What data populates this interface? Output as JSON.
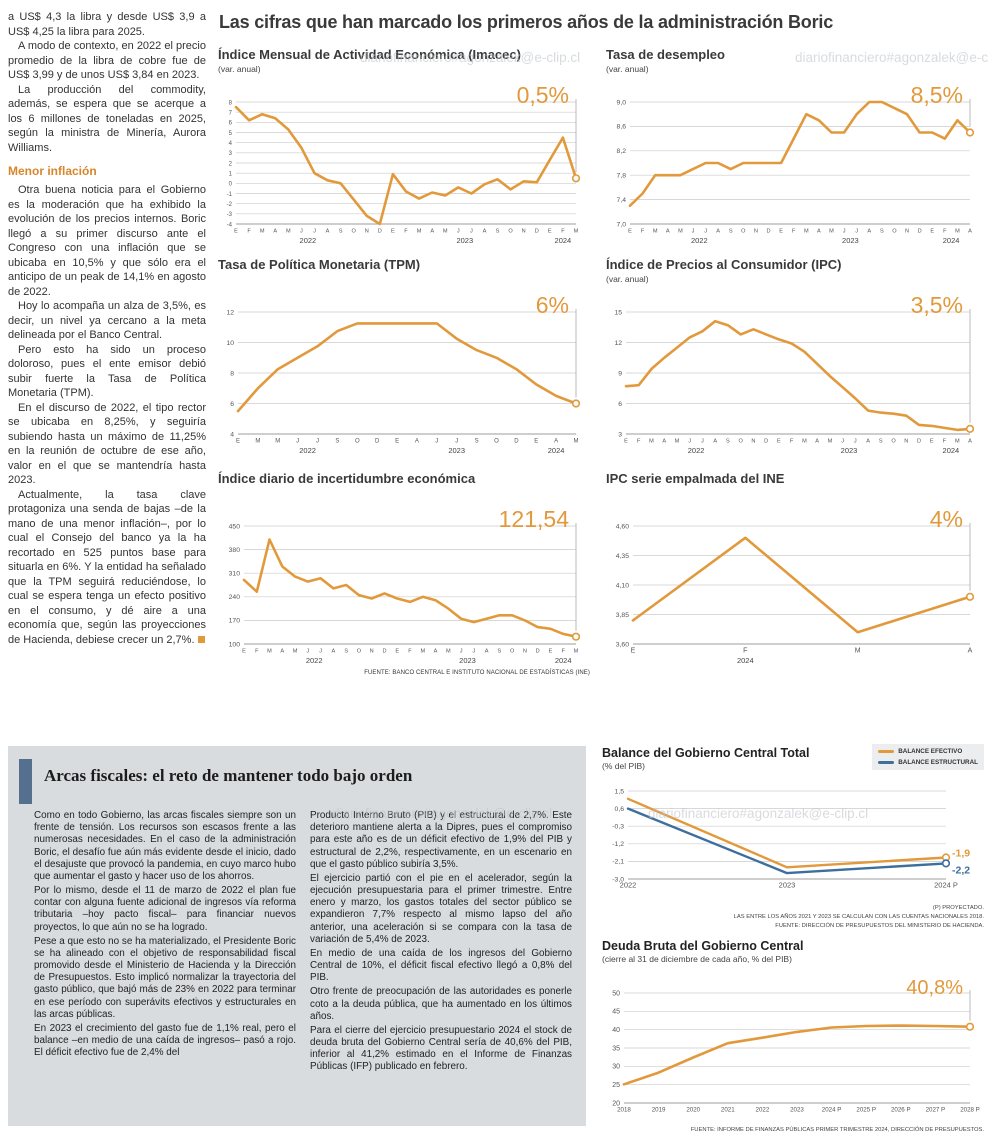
{
  "page": {
    "watermark": "diariofinanciero#agonzalek@e-clip.cl"
  },
  "main_title": "Las cifras que han marcado los primeros años de la administración Boric",
  "left_column": {
    "paragraphs": [
      "a US$ 4,3 la libra y desde US$ 3,9 a US$ 4,25 la libra para 2025.",
      "A modo de contexto, en 2022 el precio promedio de la libra de cobre fue de US$ 3,99 y de unos US$ 3,84 en 2023.",
      "La producción del commodity, además, se espera que se acerque a los 6 millones de toneladas en 2025, según la ministra de Minería, Aurora Williams."
    ],
    "subheading": "Menor inflación",
    "paragraphs2": [
      "Otra buena noticia para el Gobierno es la moderación que ha exhibido la evolución de los precios internos. Boric llegó a su primer discurso ante el Congreso con una inflación que se ubicaba en 10,5% y que sólo era el anticipo de un peak de 14,1% en agosto de 2022.",
      "Hoy lo acompaña un alza de 3,5%, es decir, un nivel ya cercano a la meta delineada por el Banco Central.",
      "Pero esto ha sido un proceso doloroso, pues el ente emisor debió subir fuerte la Tasa de Política Monetaria (TPM).",
      "En el discurso de 2022, el tipo rector se ubicaba en 8,25%, y seguiría subiendo hasta un máximo de 11,25% en la reunión de octubre de ese año, valor en el que se mantendría hasta 2023.",
      "Actualmente, la tasa clave protagoniza una senda de bajas –de la mano de una menor inflación–, por lo cual el Consejo del banco ya la ha recortado en 525 puntos base para situarla en 6%. Y la entidad ha señalado que la TPM seguirá reduciéndose, lo cual se espera tenga un efecto positivo en el consumo, y dé aire a una economía que, según las proyecciones de Hacienda, debiese crecer un 2,7%."
    ]
  },
  "fiscal": {
    "title": "Arcas fiscales: el reto de mantener todo bajo orden",
    "col1": [
      "Como en todo Gobierno, las arcas fiscales siempre son un frente de tensión. Los recursos son escasos frente a las numerosas necesidades. En el caso de la administración Boric, el desafío fue aún más evidente desde el inicio, dado el desajuste que provocó la pandemia, en cuyo marco hubo que aumentar el gasto y hacer uso de los ahorros.",
      "Por lo mismo, desde el 11 de marzo de 2022 el plan fue contar con alguna fuente adicional de ingresos vía reforma tributaria –hoy pacto fiscal– para financiar nuevos proyectos, lo que aún no se ha logrado.",
      "Pese a que esto no se ha materializado, el Presidente Boric se ha alineado con el objetivo de responsabilidad fiscal promovido desde el Ministerio de Hacienda y la Dirección de Presupuestos. Esto implicó normalizar la trayectoria del gasto público, que bajó más de 23% en 2022 para terminar en ese período con superávits efectivos y estructurales en las arcas públicas.",
      "En 2023 el crecimiento del gasto fue de 1,1% real, pero el balance –en medio de una caída de ingresos– pasó a rojo. El déficit efectivo fue de 2,4% del"
    ],
    "col2": [
      "Producto Interno Bruto (PIB) y el estructural de 2,7%. Este deterioro mantiene alerta a la Dipres, pues el compromiso para este año es de un déficit efectivo de 1,9% del PIB y estructural de 2,2%, respectivamente, en un escenario en que el gasto público subiría 3,5%.",
      "El ejercicio partió con el pie en el acelerador, según la ejecución presupuestaria para el primer trimestre. Entre enero y marzo, los gastos totales del sector público se expandieron 7,7% respecto al mismo lapso del año anterior, una aceleración si se compara con la tasa de variación de 5,4% de 2023.",
      "En medio de una caída de los ingresos del Gobierno Central de 10%, el déficit fiscal efectivo llegó a 0,8% del PIB.",
      "Otro frente de preocupación de las autoridades es ponerle coto a la deuda pública, que ha aumentado en los últimos años.",
      "Para el cierre del ejercicio presupuestario 2024 el stock de deuda bruta del Gobierno Central sería de 40,6% del PIB, inferior al 41,2% estimado en el Informe de Finanzas Públicas (IFP) publicado en febrero."
    ]
  },
  "sources": {
    "top": "FUENTE: BANCO CENTRAL E INSTITUTO NACIONAL DE ESTADÍSTICAS (INE)",
    "balance_notes": [
      "(P) PROYECTADO.",
      "LAS ENTRE LOS AÑOS 2021 Y 2023 SE CALCULAN CON LAS CUENTAS NACIONALES 2018.",
      "FUENTE: DIRECCIÓN DE PRESUPUESTOS DEL MINISTERIO DE HACIENDA."
    ],
    "deuda": "FUENTE: INFORME DE FINANZAS PÚBLICAS PRIMER TRIMESTRE 2024, DIRECCIÓN DE PRESUPUESTOS."
  },
  "colors": {
    "orange": "#E2993B",
    "blue": "#3D6F9E",
    "gray_box": "#D9DCDF",
    "accent_bar": "#54708E"
  },
  "chart_data": [
    {
      "type": "line",
      "title": "Índice Mensual de Actividad Económica (Imacec)",
      "subtitle": "(var. anual)",
      "big_label": "0,5%",
      "ylim": [
        -4,
        8
      ],
      "yticks": [
        8,
        7,
        6,
        5,
        4,
        3,
        2,
        1,
        0,
        -1,
        -2,
        -3,
        -4
      ],
      "xlabels": [
        "E",
        "F",
        "M",
        "A",
        "M",
        "J",
        "J",
        "A",
        "S",
        "O",
        "N",
        "D",
        "E",
        "F",
        "M",
        "A",
        "M",
        "J",
        "J",
        "A",
        "S",
        "O",
        "N",
        "D",
        "E",
        "F",
        "M"
      ],
      "year_labels": [
        {
          "label": "2022",
          "from": 0,
          "to": 11
        },
        {
          "label": "2023",
          "from": 12,
          "to": 23
        },
        {
          "label": "2024",
          "from": 24,
          "to": 26
        }
      ],
      "series": [
        {
          "name": "Imacec",
          "color": "#E2993B",
          "values": [
            7.5,
            6.2,
            6.8,
            6.4,
            5.3,
            3.5,
            1.0,
            0.3,
            0.0,
            -1.6,
            -3.2,
            -4.0,
            0.9,
            -0.8,
            -1.5,
            -0.9,
            -1.2,
            -0.4,
            -1.0,
            -0.1,
            0.4,
            -0.6,
            0.2,
            0.1,
            2.3,
            4.5,
            0.5
          ]
        }
      ]
    },
    {
      "type": "line",
      "title": "Tasa de desempleo",
      "subtitle": "(var. anual)",
      "big_label": "8,5%",
      "ylim": [
        7.0,
        9.0
      ],
      "yticks": [
        9.0,
        8.6,
        8.2,
        7.8,
        7.4,
        7.0
      ],
      "ytick_labels": [
        "9,0",
        "8,6",
        "8,2",
        "7,8",
        "7,4",
        "7,0"
      ],
      "xlabels": [
        "E",
        "F",
        "M",
        "A",
        "M",
        "J",
        "J",
        "A",
        "S",
        "O",
        "N",
        "D",
        "E",
        "F",
        "M",
        "A",
        "M",
        "J",
        "J",
        "A",
        "S",
        "O",
        "N",
        "D",
        "E",
        "F",
        "M",
        "A"
      ],
      "year_labels": [
        {
          "label": "2022",
          "from": 0,
          "to": 11
        },
        {
          "label": "2023",
          "from": 12,
          "to": 23
        },
        {
          "label": "2024",
          "from": 24,
          "to": 27
        }
      ],
      "series": [
        {
          "name": "Tasa de desempleo",
          "color": "#E2993B",
          "values": [
            7.3,
            7.5,
            7.8,
            7.8,
            7.8,
            7.9,
            8.0,
            8.0,
            7.9,
            8.0,
            8.0,
            8.0,
            8.0,
            8.4,
            8.8,
            8.7,
            8.5,
            8.5,
            8.8,
            9.0,
            9.0,
            8.9,
            8.8,
            8.5,
            8.5,
            8.4,
            8.7,
            8.5
          ]
        }
      ]
    },
    {
      "type": "line",
      "title": "Tasa de Política Monetaria (TPM)",
      "subtitle": "",
      "big_label": "6%",
      "ylim": [
        4,
        12
      ],
      "yticks": [
        12,
        10,
        8,
        6,
        4
      ],
      "xlabels": [
        "E",
        "M",
        "M",
        "J",
        "J",
        "S",
        "O",
        "D",
        "E",
        "A",
        "J",
        "J",
        "S",
        "O",
        "D",
        "E",
        "A",
        "M"
      ],
      "year_labels": [
        {
          "label": "2022",
          "from": 0,
          "to": 7
        },
        {
          "label": "2023",
          "from": 8,
          "to": 14
        },
        {
          "label": "2024",
          "from": 15,
          "to": 17
        }
      ],
      "series": [
        {
          "name": "TPM",
          "color": "#E2993B",
          "values": [
            5.5,
            7.0,
            8.25,
            9.0,
            9.75,
            10.75,
            11.25,
            11.25,
            11.25,
            11.25,
            11.25,
            10.25,
            9.5,
            9.0,
            8.25,
            7.25,
            6.5,
            6.0
          ]
        }
      ]
    },
    {
      "type": "line",
      "title": "Índice de Precios al Consumidor (IPC)",
      "subtitle": "(var. anual)",
      "big_label": "3,5%",
      "ylim": [
        3,
        15
      ],
      "yticks": [
        15,
        12,
        9,
        6,
        3
      ],
      "xlabels": [
        "E",
        "F",
        "M",
        "A",
        "M",
        "J",
        "J",
        "A",
        "S",
        "O",
        "N",
        "D",
        "E",
        "F",
        "M",
        "A",
        "M",
        "J",
        "J",
        "A",
        "S",
        "O",
        "N",
        "D",
        "E",
        "F",
        "M",
        "A"
      ],
      "year_labels": [
        {
          "label": "2022",
          "from": 0,
          "to": 11
        },
        {
          "label": "2023",
          "from": 12,
          "to": 23
        },
        {
          "label": "2024",
          "from": 24,
          "to": 27
        }
      ],
      "series": [
        {
          "name": "IPC",
          "color": "#E2993B",
          "values": [
            7.7,
            7.8,
            9.4,
            10.5,
            11.5,
            12.5,
            13.1,
            14.1,
            13.7,
            12.8,
            13.3,
            12.8,
            12.3,
            11.9,
            11.1,
            9.9,
            8.7,
            7.6,
            6.5,
            5.3,
            5.1,
            5.0,
            4.8,
            3.9,
            3.8,
            3.6,
            3.4,
            3.5
          ]
        }
      ]
    },
    {
      "type": "line",
      "title": "Índice diario de incertidumbre económica",
      "subtitle": "",
      "big_label": "121,54",
      "ylim": [
        100,
        450
      ],
      "yticks": [
        450,
        380,
        310,
        240,
        170,
        100
      ],
      "xlabels": [
        "E",
        "F",
        "M",
        "A",
        "M",
        "J",
        "J",
        "A",
        "S",
        "O",
        "N",
        "D",
        "E",
        "F",
        "M",
        "A",
        "M",
        "J",
        "J",
        "A",
        "S",
        "O",
        "N",
        "D",
        "E",
        "F",
        "M"
      ],
      "year_labels": [
        {
          "label": "2022",
          "from": 0,
          "to": 11
        },
        {
          "label": "2023",
          "from": 12,
          "to": 23
        },
        {
          "label": "2024",
          "from": 24,
          "to": 26
        }
      ],
      "series": [
        {
          "name": "Incertidumbre económica",
          "color": "#E2993B",
          "values": [
            290,
            255,
            410,
            330,
            300,
            285,
            295,
            265,
            275,
            245,
            235,
            250,
            235,
            225,
            240,
            230,
            205,
            175,
            165,
            175,
            185,
            185,
            170,
            150,
            145,
            130,
            121.54
          ]
        }
      ]
    },
    {
      "type": "line",
      "title": "IPC serie empalmada del INE",
      "subtitle": "",
      "big_label": "4%",
      "ylim": [
        3.6,
        4.6
      ],
      "yticks": [
        4.6,
        4.35,
        4.1,
        3.85,
        3.6
      ],
      "ytick_labels": [
        "4,60",
        "4,35",
        "4,10",
        "3,85",
        "3,60"
      ],
      "xlabels": [
        "E",
        "F",
        "M",
        "A"
      ],
      "year_labels": [
        {
          "label": "2024",
          "from": 0,
          "to": 2
        }
      ],
      "series": [
        {
          "name": "IPC serie empalmada",
          "color": "#E2993B",
          "values": [
            3.8,
            4.5,
            3.7,
            4.0
          ]
        }
      ]
    },
    {
      "type": "line",
      "title": "Balance del Gobierno Central Total",
      "subtitle": "(% del PIB)",
      "ylim": [
        -3.0,
        1.5
      ],
      "yticks": [
        1.5,
        0.6,
        -0.3,
        -1.2,
        -2.1,
        -3.0
      ],
      "ytick_labels": [
        "1,5",
        "0,6",
        "-0,3",
        "-1,2",
        "-2,1",
        "-3,0"
      ],
      "xlabels": [
        "2022",
        "2023",
        "2024 P"
      ],
      "series": [
        {
          "name": "BALANCE EFECTIVO",
          "color": "#E2993B",
          "values": [
            1.1,
            -2.4,
            -1.9
          ],
          "end_label": "-1,9",
          "end_dy": -1
        },
        {
          "name": "BALANCE ESTRUCTURAL",
          "color": "#3D6F9E",
          "values": [
            0.6,
            -2.7,
            -2.2
          ],
          "end_label": "-2,2",
          "end_dy": 10
        }
      ]
    },
    {
      "type": "line",
      "title": "Deuda Bruta del Gobierno Central",
      "subtitle": "(cierre al 31 de diciembre de cada año, % del PIB)",
      "big_label": "40,8%",
      "ylim": [
        20,
        50
      ],
      "yticks": [
        50,
        45,
        40,
        35,
        30,
        25,
        20
      ],
      "xlabels": [
        "2018",
        "2019",
        "2020",
        "2021",
        "2022",
        "2023",
        "2024 P",
        "2025 P",
        "2026 P",
        "2027 P",
        "2028 P"
      ],
      "series": [
        {
          "name": "Deuda bruta",
          "color": "#E2993B",
          "values": [
            25.1,
            28.3,
            32.4,
            36.3,
            37.8,
            39.4,
            40.6,
            41.0,
            41.1,
            41.0,
            40.8
          ]
        }
      ]
    }
  ]
}
